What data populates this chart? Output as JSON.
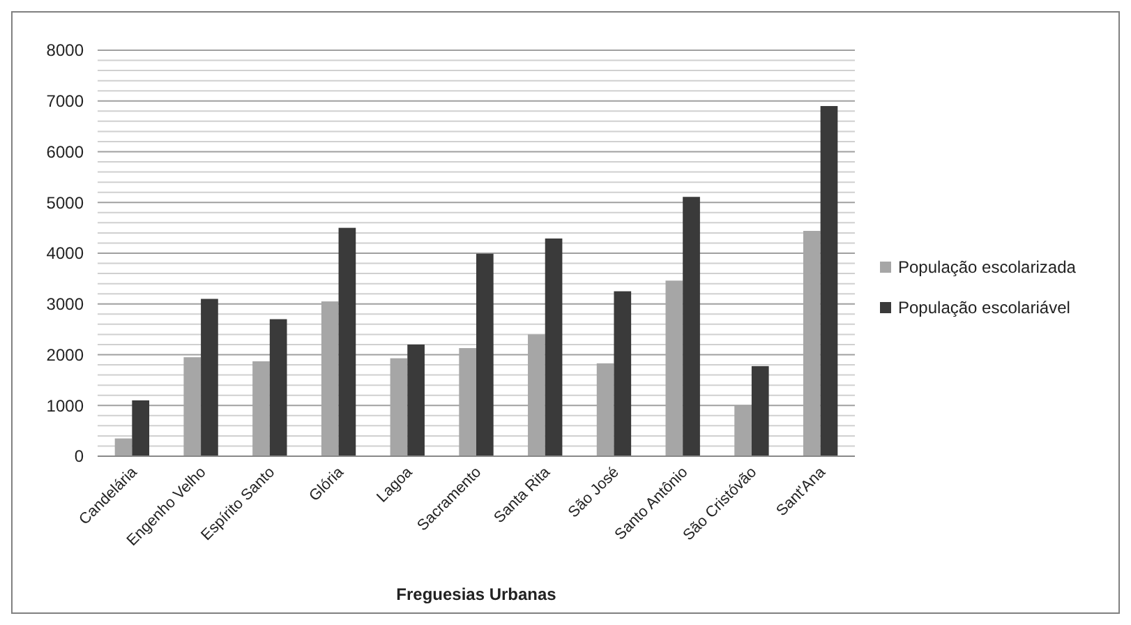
{
  "chart_data": {
    "type": "bar",
    "xlabel": "Freguesias Urbanas",
    "categories": [
      "Candelária",
      "Engenho Velho",
      "Espírito Santo",
      "Glória",
      "Lagoa",
      "Sacramento",
      "Santa Rita",
      "São José",
      "Santo Antônio",
      "São Cristóvão",
      "Sant'Ana"
    ],
    "series": [
      {
        "name": "População escolarizada",
        "color": "#a6a6a6",
        "values": [
          350,
          1950,
          1870,
          3050,
          1930,
          2130,
          2400,
          1830,
          3460,
          990,
          4440
        ]
      },
      {
        "name": "População escolariável",
        "color": "#3a3a3a",
        "values": [
          1100,
          3100,
          2700,
          4500,
          2200,
          3990,
          4290,
          3250,
          5110,
          1775,
          6900
        ]
      }
    ],
    "ylim": [
      0,
      8000
    ],
    "yticks": [
      0,
      {
        "value": 200,
        "label": null
      },
      {
        "value": 400,
        "label": null
      },
      {
        "value": 600,
        "label": null
      },
      {
        "value": 800,
        "label": null
      },
      1000,
      {
        "value": 1200,
        "label": null
      },
      {
        "value": 1400,
        "label": null
      },
      {
        "value": 1600,
        "label": null
      },
      {
        "value": 1800,
        "label": null
      },
      2000,
      {
        "value": 2200,
        "label": null
      },
      {
        "value": 2400,
        "label": null
      },
      {
        "value": 2600,
        "label": null
      },
      {
        "value": 2800,
        "label": null
      },
      3000,
      {
        "value": 3200,
        "label": null
      },
      {
        "value": 3400,
        "label": null
      },
      {
        "value": 3600,
        "label": null
      },
      {
        "value": 3800,
        "label": null
      },
      4000,
      {
        "value": 4200,
        "label": null
      },
      {
        "value": 4400,
        "label": null
      },
      {
        "value": 4600,
        "label": null
      },
      {
        "value": 4800,
        "label": null
      },
      5000,
      {
        "value": 5200,
        "label": null
      },
      {
        "value": 5400,
        "label": null
      },
      {
        "value": 5600,
        "label": null
      },
      {
        "value": 5800,
        "label": null
      },
      6000,
      {
        "value": 6200,
        "label": null
      },
      {
        "value": 6400,
        "label": null
      },
      {
        "value": 6600,
        "label": null
      },
      {
        "value": 6800,
        "label": null
      },
      7000,
      {
        "value": 7200,
        "label": null
      },
      {
        "value": 7400,
        "label": null
      },
      {
        "value": 7600,
        "label": null
      },
      {
        "value": 7800,
        "label": null
      },
      8000
    ],
    "grid": "y",
    "legend": "right"
  }
}
